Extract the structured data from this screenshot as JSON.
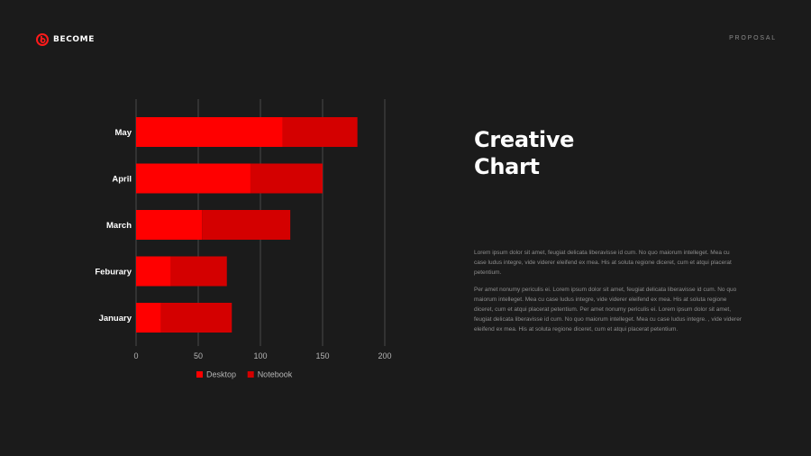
{
  "brand": {
    "name": "BECOME",
    "logo_icon": "become-logo-icon",
    "logo_color": "#ff1a1a"
  },
  "header": {
    "label": "PROPOSAL"
  },
  "title": {
    "line1": "Creative",
    "line2": "Chart"
  },
  "body": {
    "paragraph1": "Lorem ipsum dolor sit amet, feugiat delicata liberavisse id cum. No quo maiorum intelleget. Mea cu case ludus integre, vide viderer eleifend ex mea. His at soluta regione diceret, cum et atqui placerat petentium.",
    "paragraph2": "Per amet nonumy periculis ei. Lorem ipsum dolor sit amet, feugiat delicata liberavisse id cum. No quo maiorum intelleget. Mea cu case ludus integre, vide viderer eleifend ex mea. His at soluta regione diceret, cum et atqui placerat petentium. Per amet nonumy periculis ei. Lorem ipsum dolor sit amet, feugiat delicata liberavisse id cum. No quo maiorum intelleget. Mea cu case ludus integre. , vide viderer eleifend ex mea. His at soluta regione diceret, cum et atqui placerat petentium."
  },
  "chart_data": {
    "type": "bar",
    "orientation": "horizontal",
    "stacked": true,
    "categories": [
      "May",
      "April",
      "March",
      "Feburary",
      "January"
    ],
    "series": [
      {
        "name": "Desktop",
        "values": [
          118,
          92,
          53,
          28,
          20
        ],
        "color": "#ff0000"
      },
      {
        "name": "Notebook",
        "values": [
          60,
          58,
          71,
          45,
          57
        ],
        "color": "#d40000"
      }
    ],
    "xlim": [
      0,
      200
    ],
    "xticks": [
      0,
      50,
      100,
      150,
      200
    ],
    "grid": true,
    "legend_position": "bottom"
  }
}
